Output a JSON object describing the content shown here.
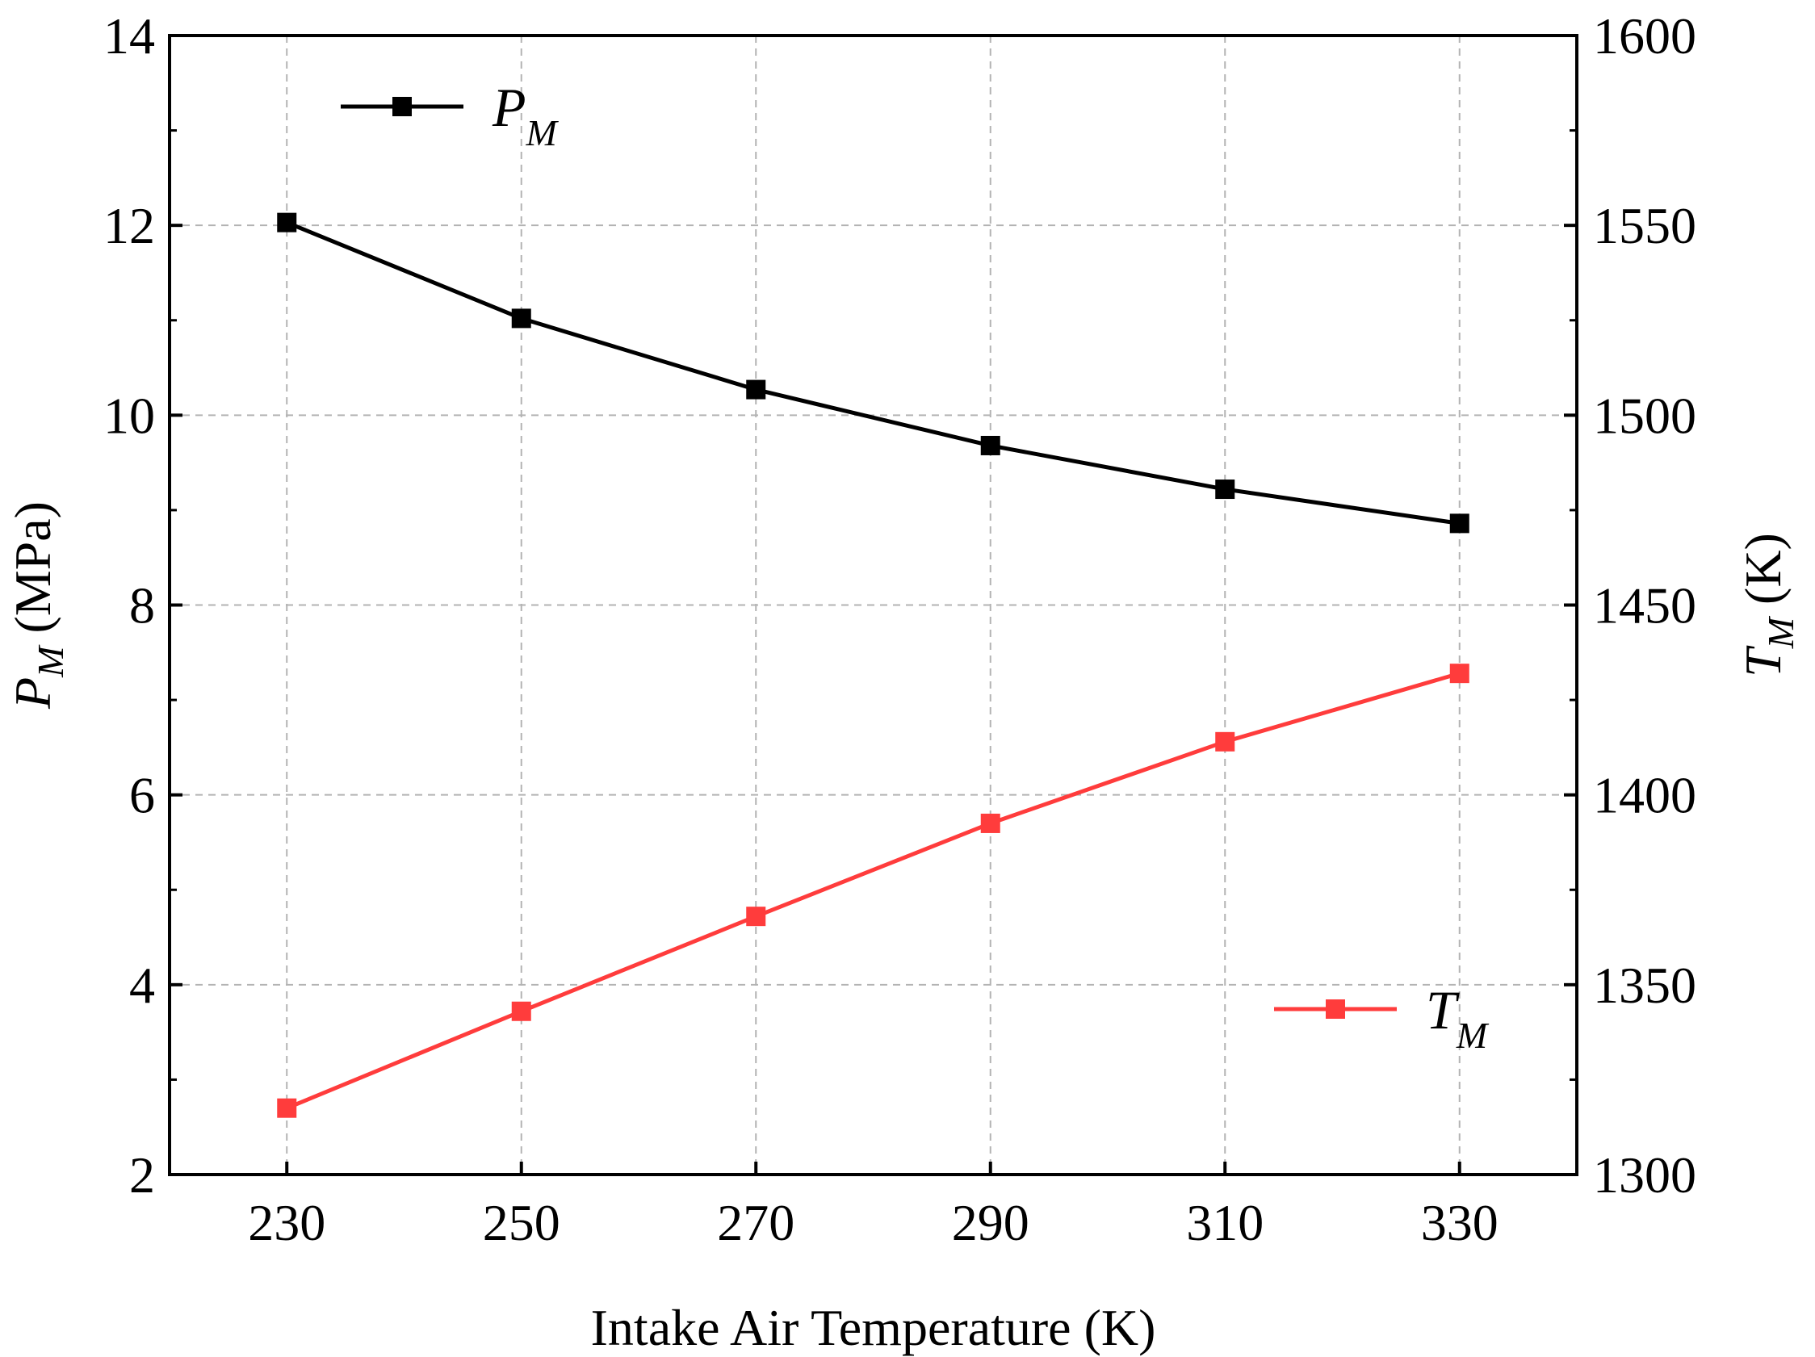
{
  "chart_data": {
    "type": "line",
    "title": "",
    "xlabel": "Intake Air Temperature (K)",
    "x": [
      230,
      250,
      270,
      290,
      310,
      330
    ],
    "xlim": [
      220,
      340
    ],
    "xticks": [
      230,
      250,
      270,
      290,
      310,
      330
    ],
    "ylabel_left": {
      "symbol": "P",
      "subscript": "M",
      "unit": "(MPa)"
    },
    "ylabel_right": {
      "symbol": "T",
      "subscript": "M",
      "unit": "(K)"
    },
    "ylim_left": [
      2,
      14
    ],
    "yticks_left": [
      2,
      4,
      6,
      8,
      10,
      12,
      14
    ],
    "ylim_right": [
      1300,
      1600
    ],
    "yticks_right": [
      1300,
      1350,
      1400,
      1450,
      1500,
      1550,
      1600
    ],
    "grid": true,
    "series": [
      {
        "name": "P_M",
        "symbol": "P",
        "subscript": "M",
        "axis": "left",
        "color": "#000000",
        "marker": "square",
        "values": [
          12.03,
          11.02,
          10.27,
          9.68,
          9.22,
          8.86
        ],
        "legend_position": "top-left"
      },
      {
        "name": "T_M",
        "symbol": "T",
        "subscript": "M",
        "axis": "right",
        "color": "#ff3c3c",
        "marker": "square",
        "values": [
          1317.5,
          1343,
          1368,
          1392.5,
          1414,
          1432
        ],
        "legend_position": "bottom-right"
      }
    ]
  }
}
